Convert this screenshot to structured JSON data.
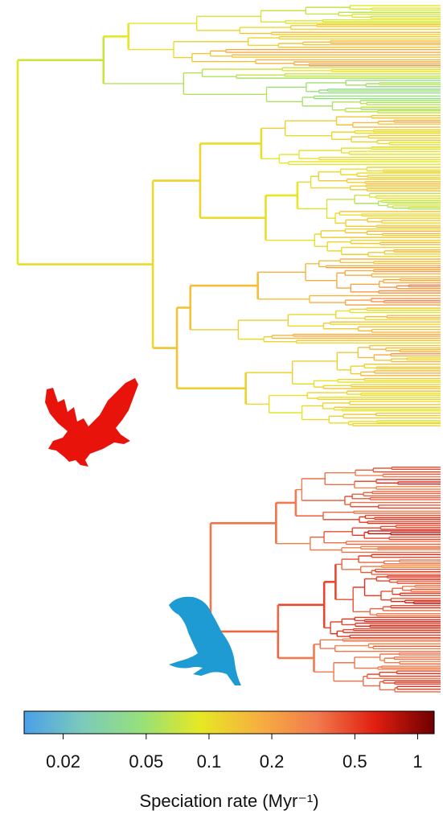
{
  "chart_data": {
    "type": "colorbar",
    "xlabel": "Speciation rate (Myr⁻¹)",
    "log_scale": true,
    "xlim": [
      0.013,
      1.2
    ],
    "xticks": [
      0.02,
      0.05,
      0.1,
      0.2,
      0.5,
      1
    ],
    "colors": [
      "#4aa0e8",
      "#7ccabb",
      "#96e07a",
      "#e6e822",
      "#f7b040",
      "#f27a4e",
      "#e01e10",
      "#6e0000"
    ]
  }
}
